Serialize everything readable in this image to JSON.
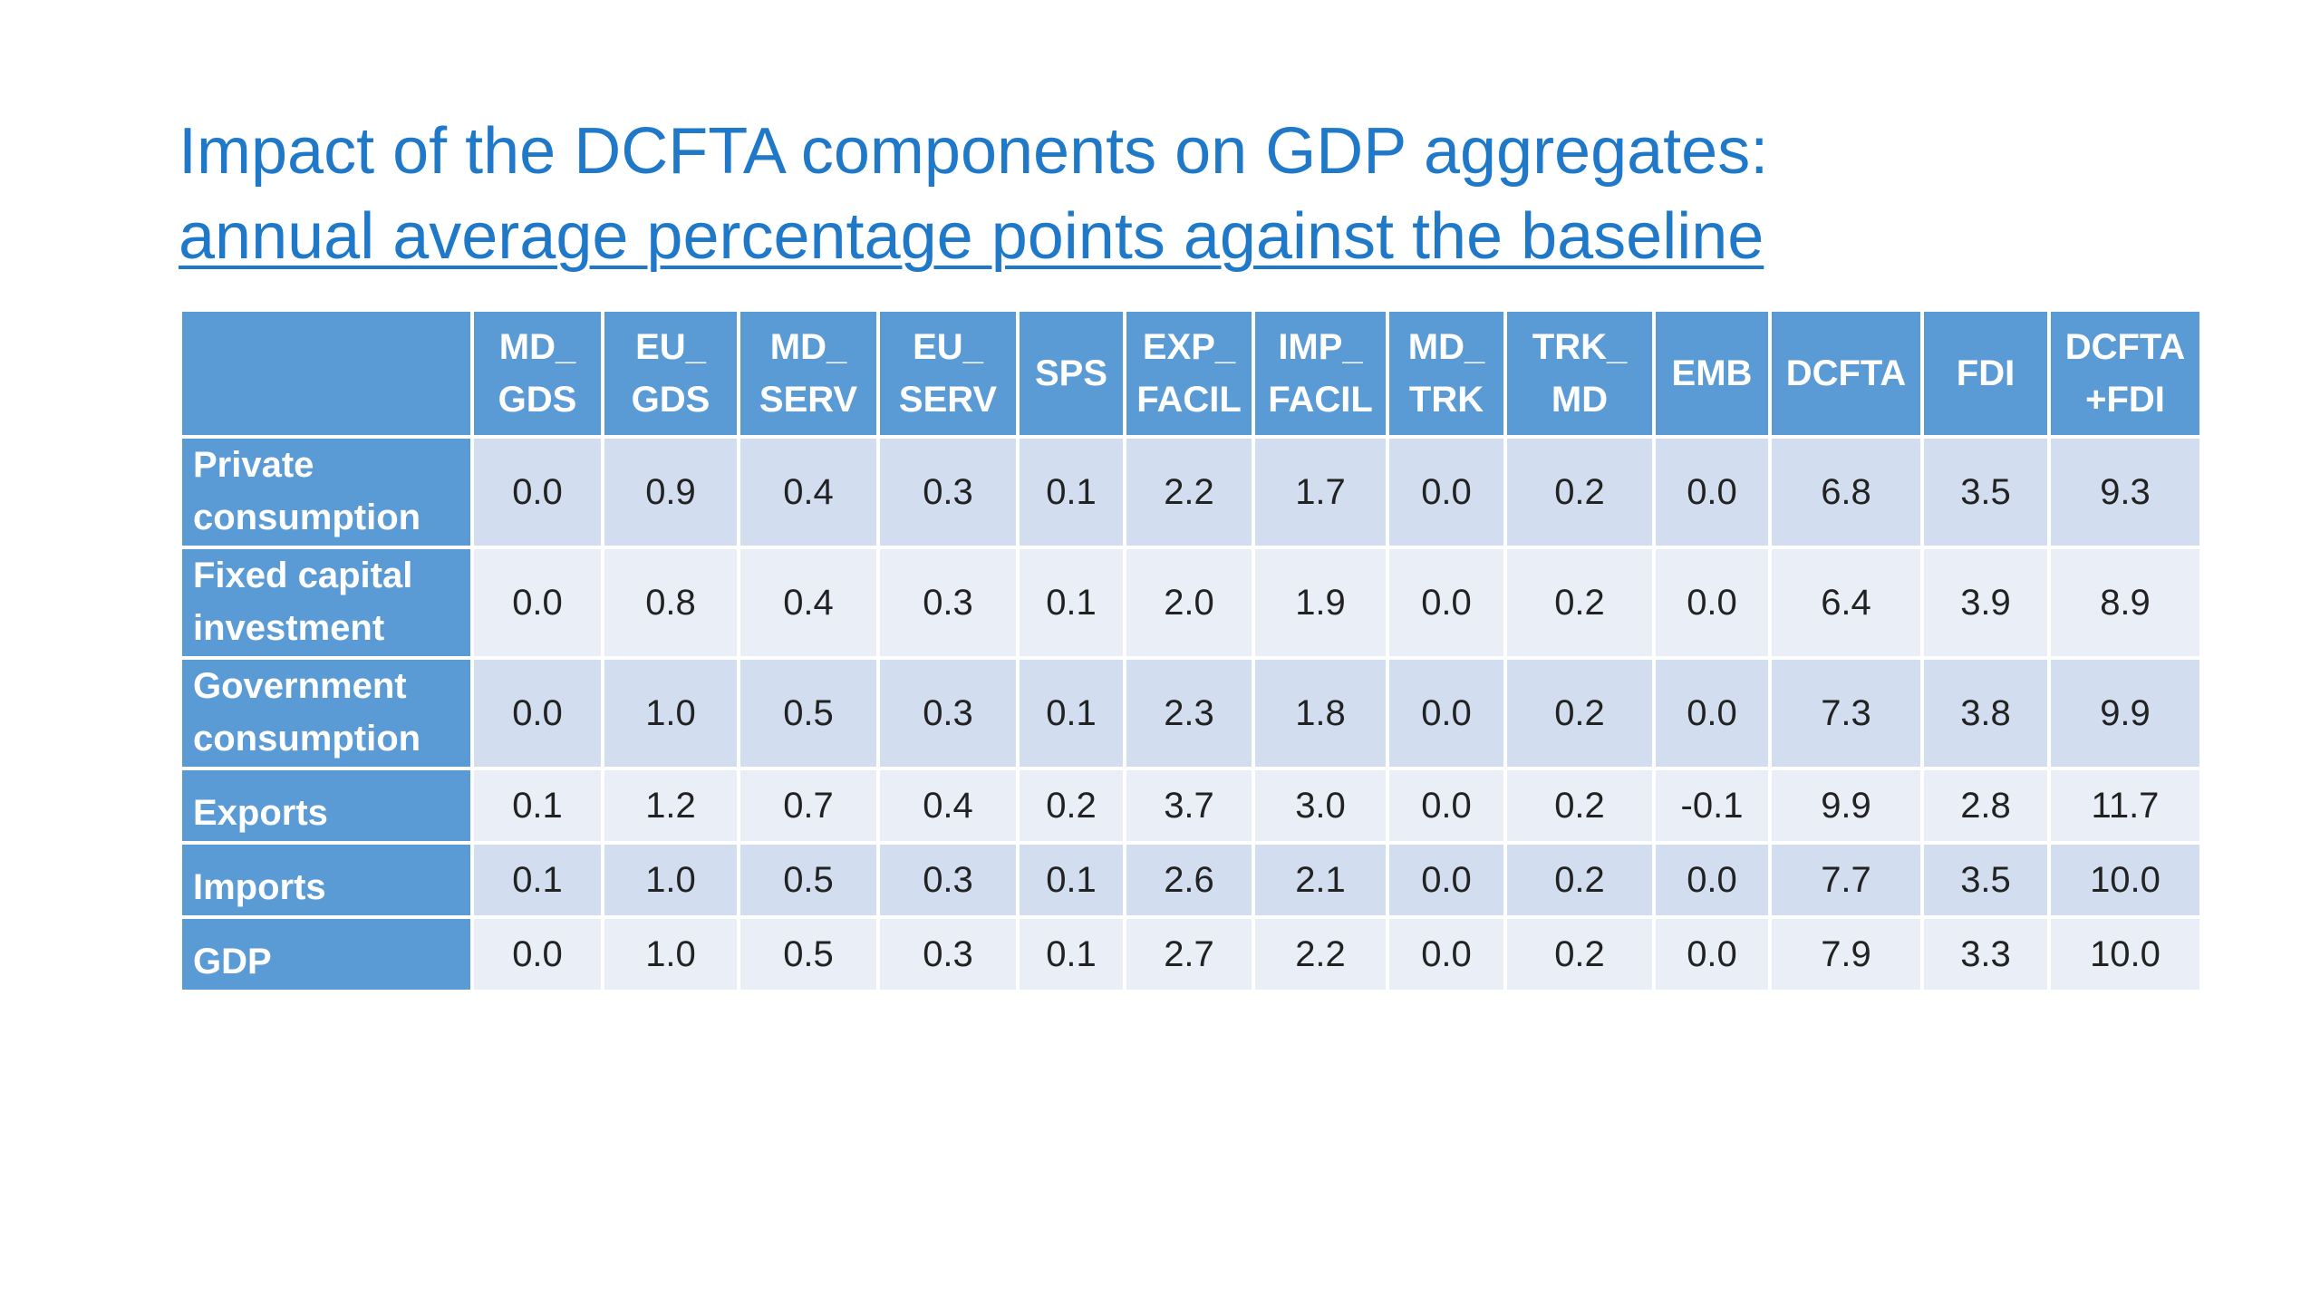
{
  "title": {
    "line1": "Impact of the DCFTA components on GDP aggregates:",
    "line2": "annual average percentage points against the baseline"
  },
  "table": {
    "headers": [
      {
        "top": "",
        "bottom": ""
      },
      {
        "top": "MD_",
        "bottom": "GDS"
      },
      {
        "top": "EU_",
        "bottom": "GDS"
      },
      {
        "top": "MD_",
        "bottom": "SERV"
      },
      {
        "top": "EU_",
        "bottom": "SERV"
      },
      {
        "top": "SPS",
        "bottom": ""
      },
      {
        "top": "EXP_",
        "bottom": "FACIL"
      },
      {
        "top": "IMP_",
        "bottom": "FACIL"
      },
      {
        "top": "MD_",
        "bottom": "TRK"
      },
      {
        "top": "TRK_",
        "bottom": "MD"
      },
      {
        "top": "EMB",
        "bottom": ""
      },
      {
        "top": "DCFTA",
        "bottom": ""
      },
      {
        "top": "FDI",
        "bottom": ""
      },
      {
        "top": "DCFTA",
        "bottom": "+FDI"
      }
    ],
    "rows": [
      {
        "label_top": "Private",
        "label_bottom": "consumption",
        "values": [
          "0.0",
          "0.9",
          "0.4",
          "0.3",
          "0.1",
          "2.2",
          "1.7",
          "0.0",
          "0.2",
          "0.0",
          "6.8",
          "3.5",
          "9.3"
        ]
      },
      {
        "label_top": "Fixed capital",
        "label_bottom": "investment",
        "values": [
          "0.0",
          "0.8",
          "0.4",
          "0.3",
          "0.1",
          "2.0",
          "1.9",
          "0.0",
          "0.2",
          "0.0",
          "6.4",
          "3.9",
          "8.9"
        ]
      },
      {
        "label_top": "Government",
        "label_bottom": "consumption",
        "values": [
          "0.0",
          "1.0",
          "0.5",
          "0.3",
          "0.1",
          "2.3",
          "1.8",
          "0.0",
          "0.2",
          "0.0",
          "7.3",
          "3.8",
          "9.9"
        ]
      },
      {
        "label_top": "Exports",
        "label_bottom": "",
        "values": [
          "0.1",
          "1.2",
          "0.7",
          "0.4",
          "0.2",
          "3.7",
          "3.0",
          "0.0",
          "0.2",
          "-0.1",
          "9.9",
          "2.8",
          "11.7"
        ]
      },
      {
        "label_top": "Imports",
        "label_bottom": "",
        "values": [
          "0.1",
          "1.0",
          "0.5",
          "0.3",
          "0.1",
          "2.6",
          "2.1",
          "0.0",
          "0.2",
          "0.0",
          "7.7",
          "3.5",
          "10.0"
        ]
      },
      {
        "label_top": "GDP",
        "label_bottom": "",
        "values": [
          "0.0",
          "1.0",
          "0.5",
          "0.3",
          "0.1",
          "2.7",
          "2.2",
          "0.0",
          "0.2",
          "0.0",
          "7.9",
          "3.3",
          "10.0"
        ]
      }
    ]
  },
  "colors": {
    "title": "#1f78c8",
    "header_bg": "#5b9bd5",
    "row_odd_bg": "#d2deef",
    "row_even_bg": "#eaeff7"
  }
}
